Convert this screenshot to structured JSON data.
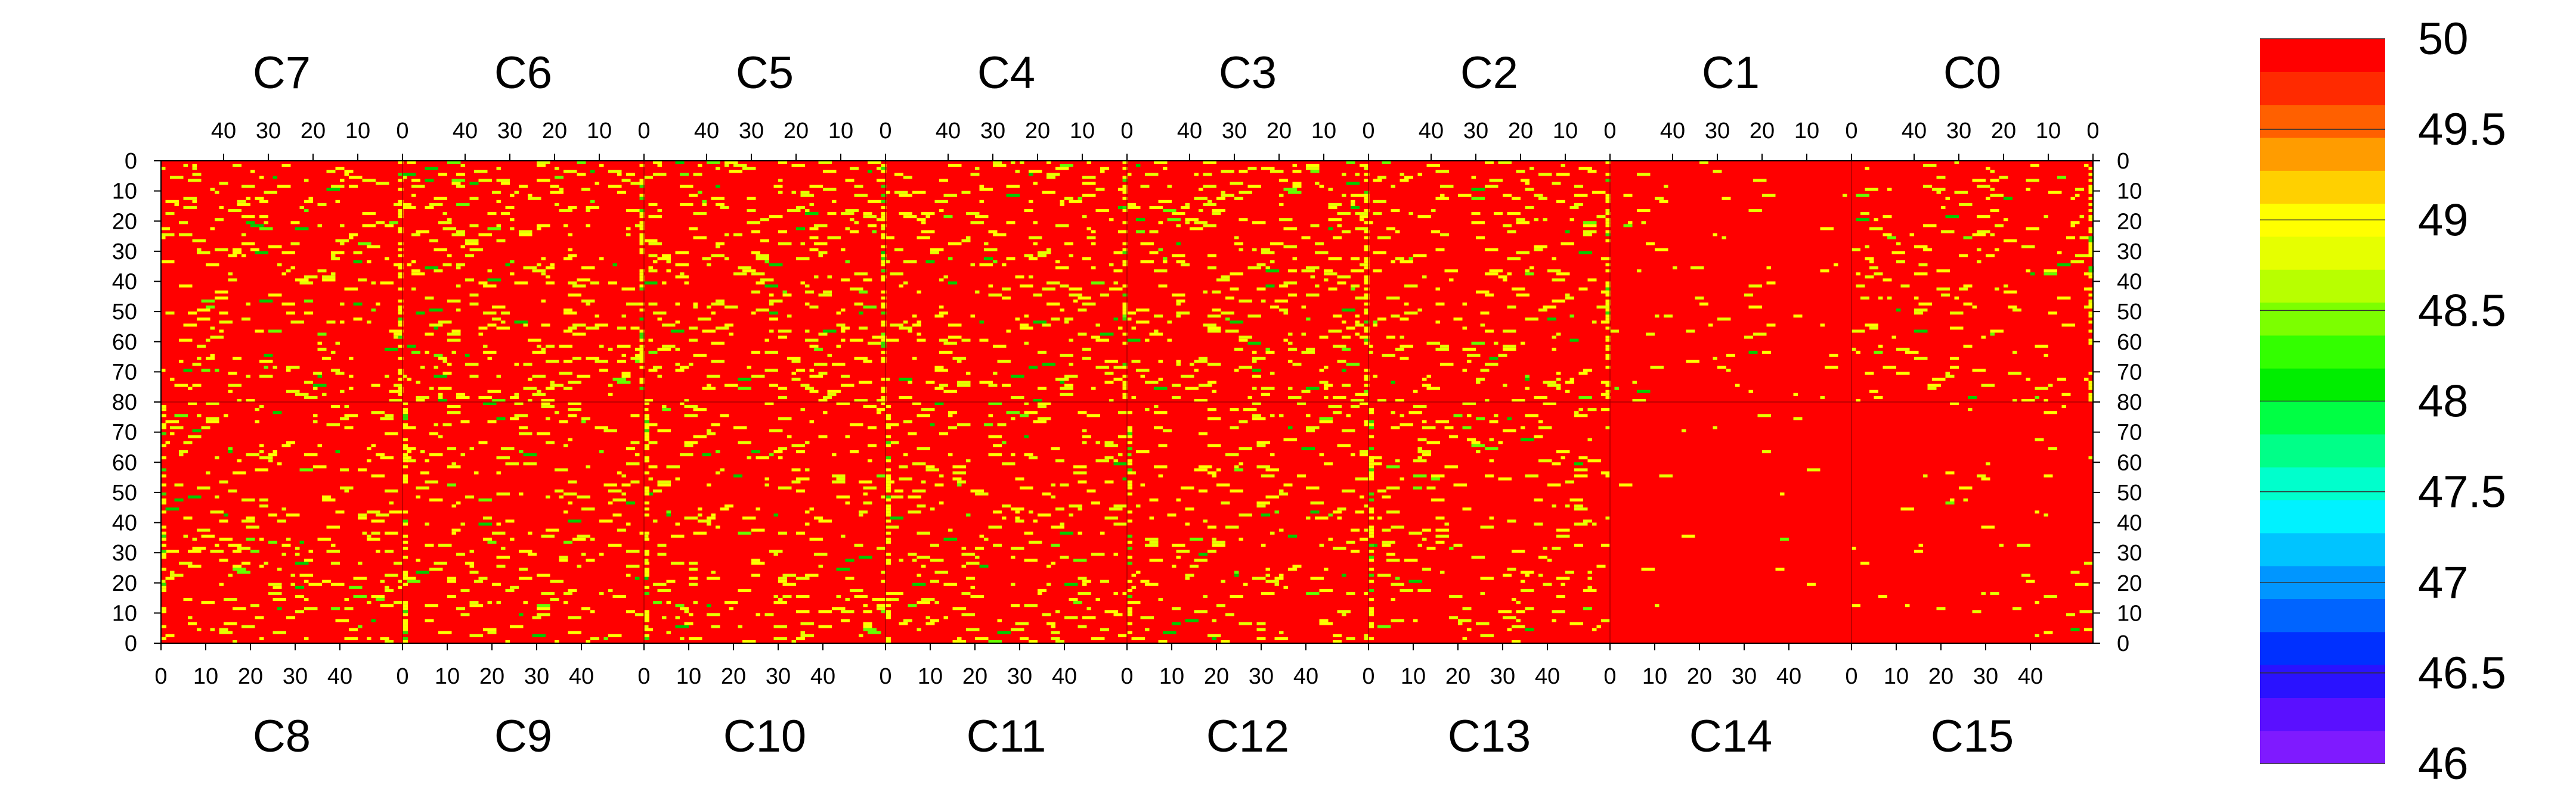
{
  "chart_data": {
    "type": "heatmap",
    "top_chips": [
      "C7",
      "C6",
      "C5",
      "C4",
      "C3",
      "C2",
      "C1",
      "C0"
    ],
    "bottom_chips": [
      "C8",
      "C9",
      "C10",
      "C11",
      "C12",
      "C13",
      "C14",
      "C15"
    ],
    "top_x_ticks": [
      "40",
      "30",
      "20",
      "10",
      "0"
    ],
    "bottom_x_ticks": [
      "0",
      "10",
      "20",
      "30",
      "40"
    ],
    "top_half_y_ticks": [
      "0",
      "10",
      "20",
      "30",
      "40",
      "50",
      "60",
      "70",
      "80"
    ],
    "bottom_half_y_ticks": [
      "70",
      "60",
      "50",
      "40",
      "30",
      "20",
      "10",
      "0"
    ],
    "columns_per_chip": 54,
    "rows_per_half": 80,
    "zlim": [
      46,
      50
    ],
    "colorbar_ticks": [
      "50",
      "49.5",
      "49",
      "48.5",
      "48",
      "47.5",
      "47",
      "46.5",
      "46"
    ],
    "colorbar_palette": [
      "#7f1aff",
      "#5a10ff",
      "#2a12ff",
      "#0030ff",
      "#0064ff",
      "#0096ff",
      "#00c4ff",
      "#00f2ff",
      "#00ffcc",
      "#00ff88",
      "#00ff44",
      "#00ee00",
      "#33ff00",
      "#7cff00",
      "#b8ff00",
      "#e6ff00",
      "#ffff00",
      "#ffd000",
      "#ff9c00",
      "#ff6000",
      "#ff2a00",
      "#ff0000"
    ],
    "background_value": 50,
    "background_color": "#ff0000",
    "chip_yellow_density_top": [
      0.05,
      0.06,
      0.06,
      0.06,
      0.06,
      0.05,
      0.012,
      0.04
    ],
    "chip_yellow_density_bottom": [
      0.05,
      0.045,
      0.05,
      0.05,
      0.05,
      0.04,
      0.006,
      0.01
    ],
    "hot_columns_note_values": [
      49,
      48.5
    ],
    "grid": false
  }
}
